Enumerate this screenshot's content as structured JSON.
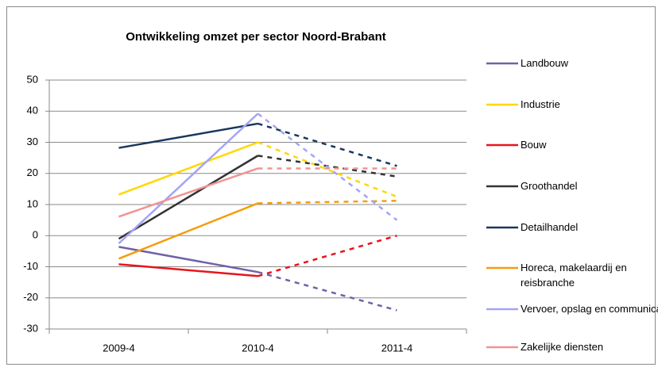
{
  "chart_data": {
    "type": "line",
    "title": "Ontwikkeling omzet per sector Noord-Brabant",
    "categories": [
      "2009-4",
      "2010-4",
      "2011-4"
    ],
    "dash_from_index": 1,
    "ylim": [
      -30,
      50
    ],
    "yticks": [
      -30,
      -20,
      -10,
      0,
      10,
      20,
      30,
      40,
      50
    ],
    "grid": true,
    "series": [
      {
        "name": "Landbouw",
        "color": "#6f62a8",
        "values": [
          -3.6,
          -11.7,
          -24
        ]
      },
      {
        "name": "Industrie",
        "color": "#ffd700",
        "values": [
          13.2,
          30,
          12.5
        ]
      },
      {
        "name": "Bouw",
        "color": "#e8141c",
        "values": [
          -9.2,
          -13,
          0
        ]
      },
      {
        "name": "Groothandel",
        "color": "#333333",
        "values": [
          -1,
          25.7,
          19
        ]
      },
      {
        "name": "Detailhandel",
        "color": "#17375e",
        "values": [
          28.2,
          36,
          22.4
        ]
      },
      {
        "name": "Horeca, makelaardij en reisbranche",
        "color": "#f59d0e",
        "values": [
          -7.4,
          10.4,
          11.2
        ]
      },
      {
        "name": "Vervoer, opslag en communicatie",
        "color": "#a4a4f4",
        "values": [
          -2.5,
          39.2,
          5
        ]
      },
      {
        "name": "Zakelijke diensten",
        "color": "#f29393",
        "values": [
          6.1,
          21.6,
          21.6
        ]
      }
    ]
  }
}
